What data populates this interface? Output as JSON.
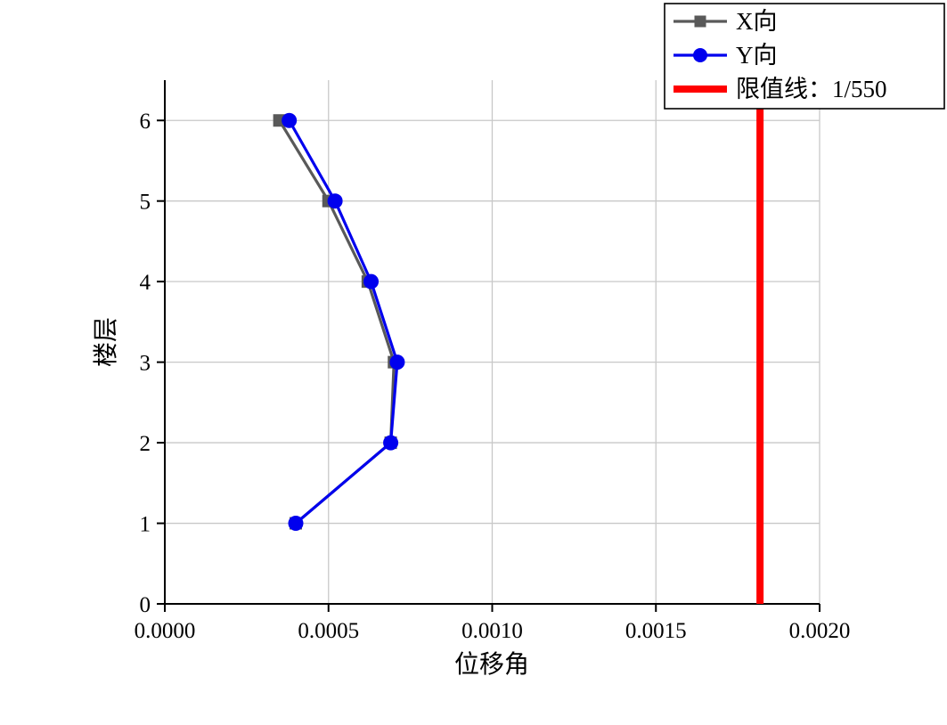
{
  "chart_data": {
    "type": "line",
    "title": "",
    "xlabel": "位移角",
    "ylabel": "楼层",
    "xlim": [
      0,
      0.002
    ],
    "ylim": [
      0,
      6.5
    ],
    "xticks": [
      0.0,
      0.0005,
      0.001,
      0.0015,
      0.002
    ],
    "xtick_labels": [
      "0.0000",
      "0.0005",
      "0.0010",
      "0.0015",
      "0.0020"
    ],
    "yticks": [
      0,
      1,
      2,
      3,
      4,
      5,
      6
    ],
    "ytick_labels": [
      "0",
      "1",
      "2",
      "3",
      "4",
      "5",
      "6"
    ],
    "grid": true,
    "grid_color": "#c8c8c8",
    "floors": [
      1,
      2,
      3,
      4,
      5,
      6
    ],
    "series": [
      {
        "name": "X向",
        "marker": "square",
        "color": "#595959",
        "values": [
          0.0004,
          0.00069,
          0.0007,
          0.00062,
          0.0005,
          0.00035
        ]
      },
      {
        "name": "Y向",
        "marker": "circle",
        "color": "#0000ee",
        "values": [
          0.0004,
          0.00069,
          0.00071,
          0.00063,
          0.00052,
          0.00038
        ]
      }
    ],
    "limit_line": {
      "label": "限值线：1/550",
      "x": 0.001818,
      "color": "#ff0000"
    },
    "legend": {
      "position": "top-right",
      "entries": [
        "X向",
        "Y向",
        "限值线：1/550"
      ]
    }
  }
}
